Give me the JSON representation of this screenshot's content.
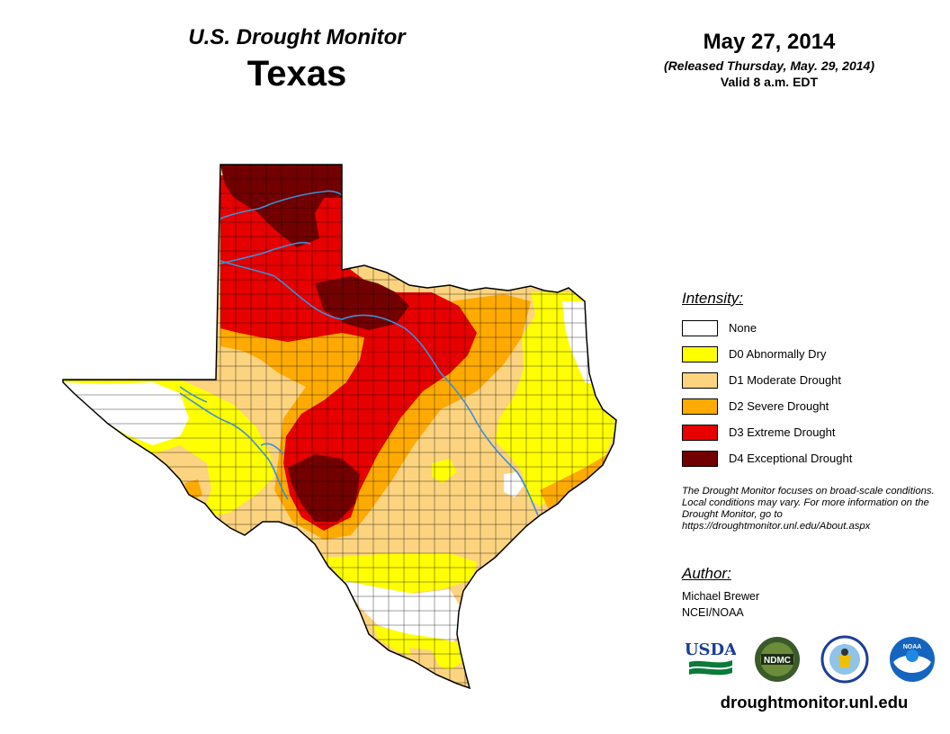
{
  "header": {
    "product_title": "U.S. Drought Monitor",
    "region": "Texas",
    "date": "May 27, 2014",
    "released": "(Released Thursday, May. 29, 2014)",
    "valid": "Valid 8 a.m. EDT"
  },
  "legend": {
    "title": "Intensity:",
    "items": [
      {
        "label": "None",
        "color": "#ffffff"
      },
      {
        "label": "D0 Abnormally Dry",
        "color": "#ffff00"
      },
      {
        "label": "D1 Moderate Drought",
        "color": "#fcd37f"
      },
      {
        "label": "D2 Severe Drought",
        "color": "#ffaa00"
      },
      {
        "label": "D3 Extreme Drought",
        "color": "#e60000"
      },
      {
        "label": "D4 Exceptional Drought",
        "color": "#730000"
      }
    ]
  },
  "note": "The Drought Monitor focuses on broad-scale conditions. Local conditions may vary. For more information on the Drought Monitor, go to https://droughtmonitor.unl.edu/About.aspx",
  "author": {
    "title": "Author:",
    "name": "Michael Brewer",
    "affiliation": "NCEI/NOAA"
  },
  "logos": [
    {
      "name": "usda-logo",
      "text": "USDA"
    },
    {
      "name": "ndmc-logo",
      "text": "NDMC"
    },
    {
      "name": "doc-seal-logo"
    },
    {
      "name": "noaa-logo",
      "text": "NOAA"
    }
  ],
  "site_url": "droughtmonitor.unl.edu",
  "colors": {
    "river": "#3d8fd6",
    "state_outline": "#000000",
    "county_lines": "#000000"
  }
}
